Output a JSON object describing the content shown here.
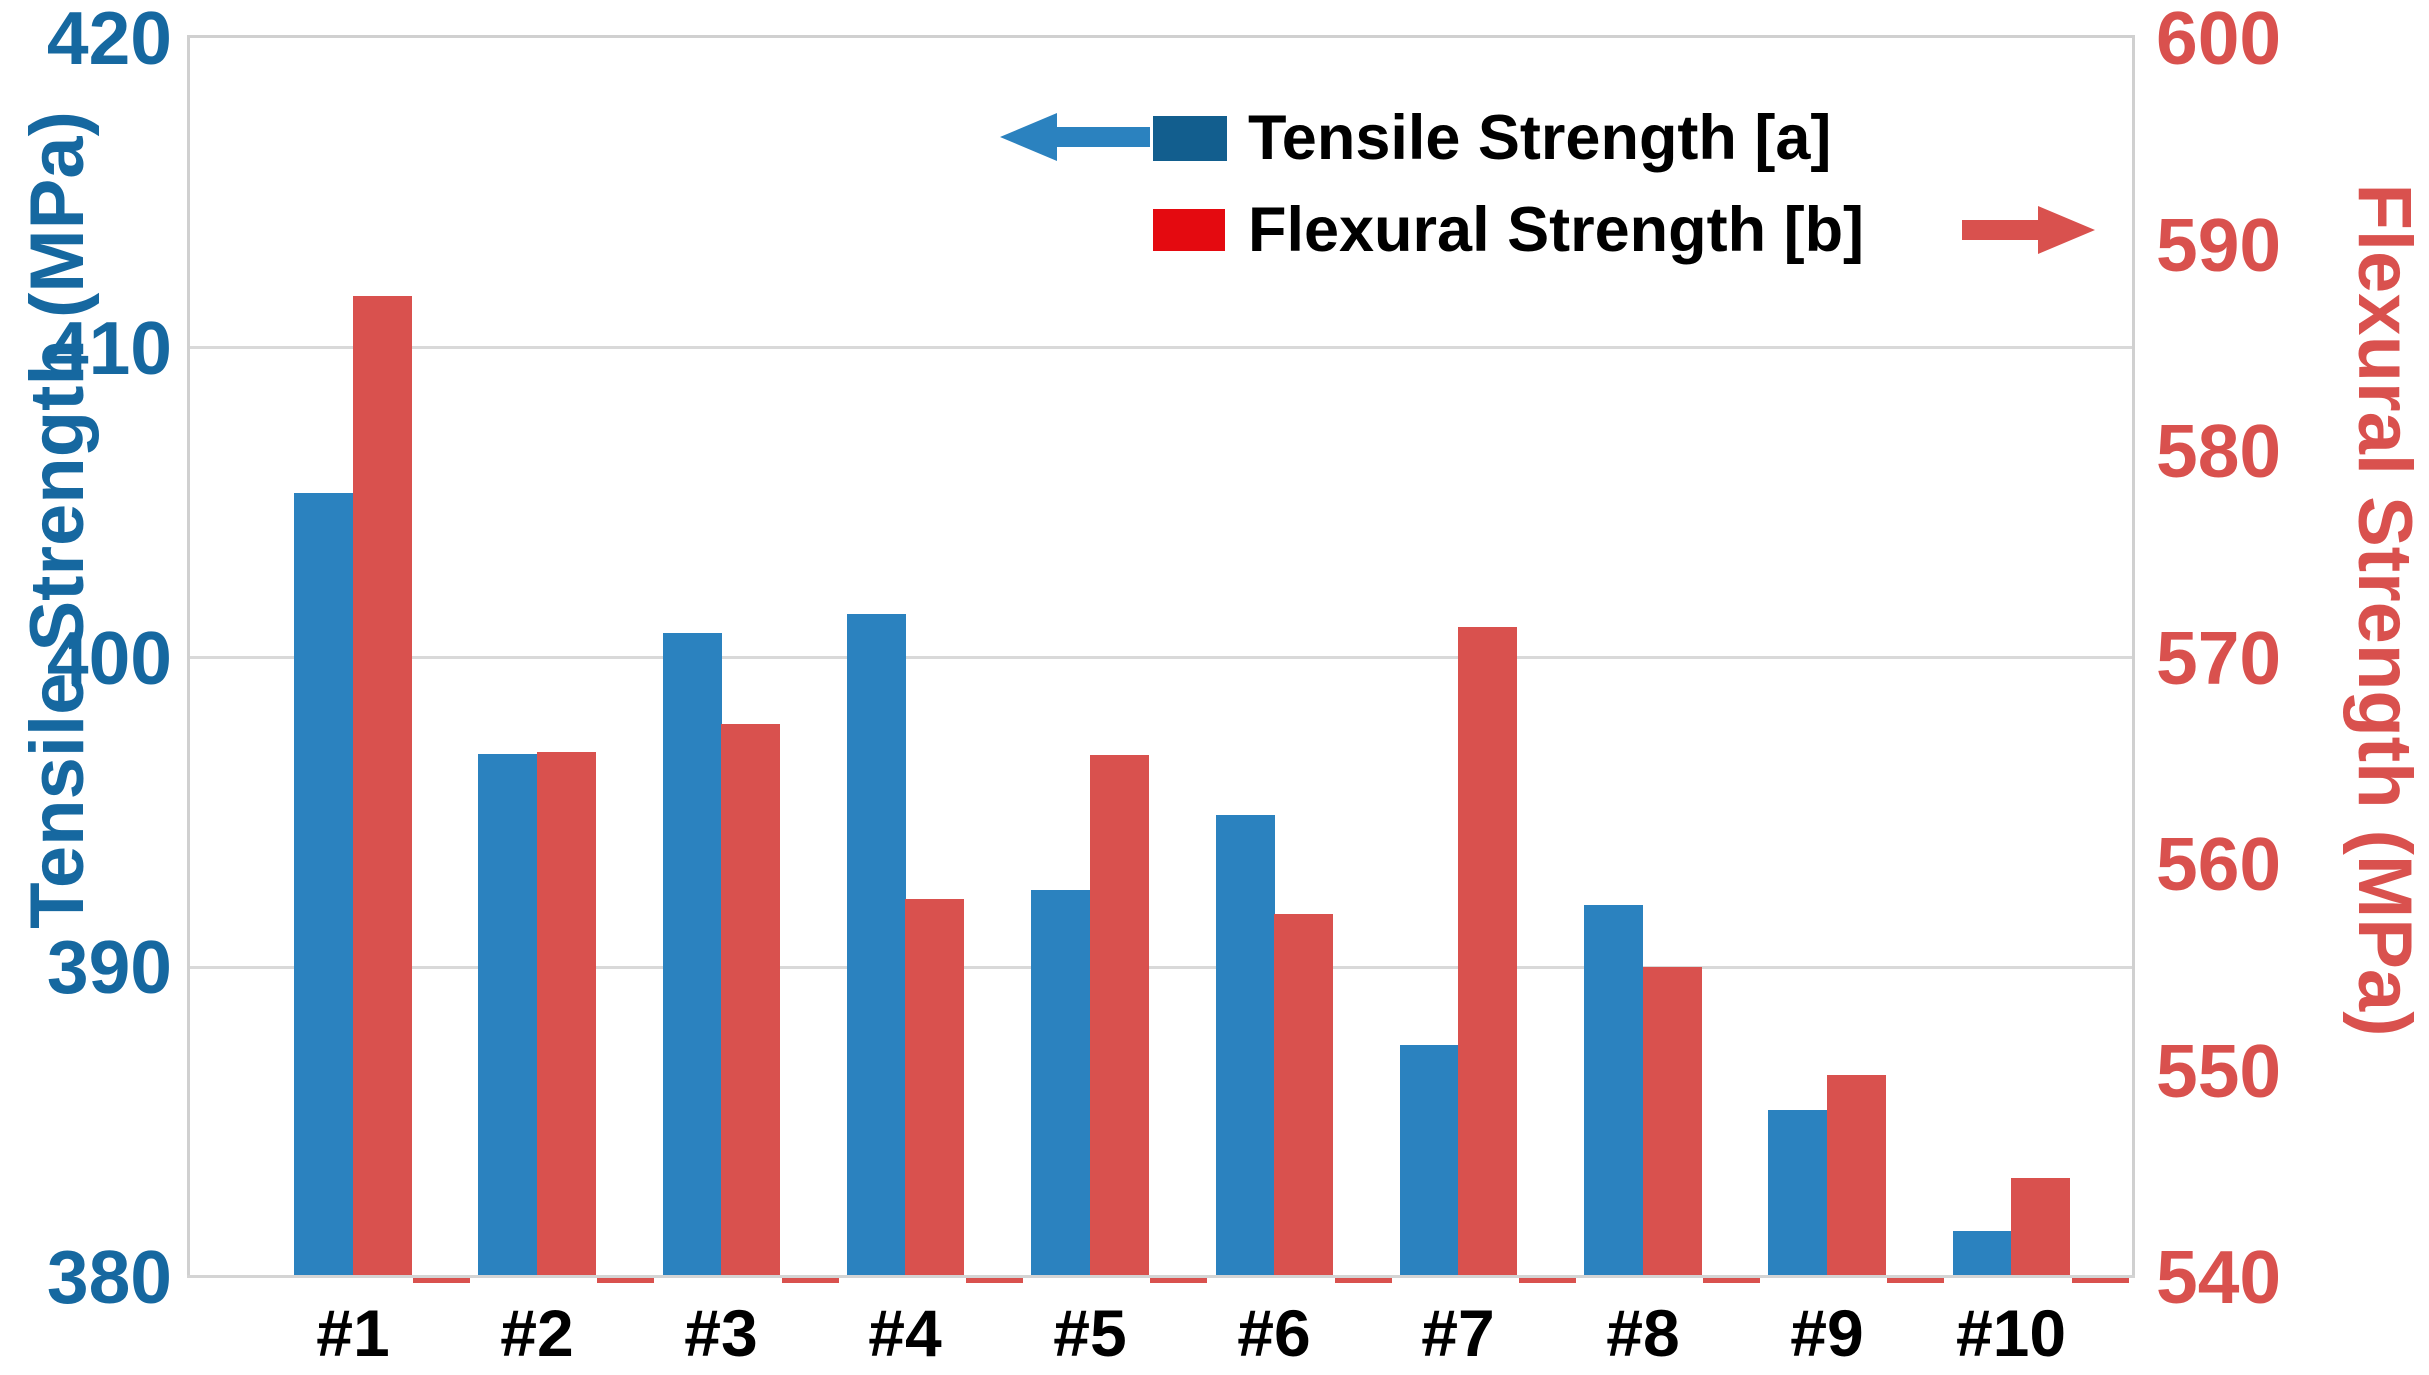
{
  "chart_data": {
    "type": "bar",
    "categories": [
      "#1",
      "#2",
      "#3",
      "#4",
      "#5",
      "#6",
      "#7",
      "#8",
      "#9",
      "#10"
    ],
    "series": [
      {
        "name": "Tensile Strength [a]",
        "axis": "left",
        "unit": "MPa",
        "bar_color": "#2b82bf",
        "legend_swatch_color": "#125e8e",
        "values": [
          405.3,
          396.9,
          400.8,
          401.4,
          392.5,
          394.9,
          387.5,
          392.0,
          385.4,
          381.5
        ]
      },
      {
        "name": "Flexural Strength [b]",
        "axis": "right",
        "unit": "MPa",
        "bar_color": "#d9514e",
        "legend_swatch_color": "#e40a10",
        "values": [
          587.5,
          565.4,
          566.8,
          558.3,
          565.3,
          557.6,
          571.5,
          555.0,
          549.8,
          544.8
        ]
      }
    ],
    "left_axis": {
      "label": "Tensile Strength (MPa)",
      "min": 380,
      "max": 420,
      "tick_step": 10,
      "ticks": [
        420,
        410,
        400,
        390,
        380
      ],
      "color": "#1668a0"
    },
    "right_axis": {
      "label": "Flexural Strength (MPa)",
      "min": 540,
      "max": 600,
      "tick_step": 10,
      "ticks": [
        600,
        590,
        580,
        570,
        560,
        550,
        540
      ],
      "color": "#d9514e"
    },
    "gridlines": {
      "at_left_values": [
        410,
        400,
        390
      ],
      "color": "#d9d9d9"
    },
    "legend": {
      "position": "top-center",
      "entries": [
        {
          "label": "Tensile Strength [a]",
          "arrow": "left",
          "arrow_color": "#2b82bf",
          "swatch_color": "#125e8e"
        },
        {
          "label": "Flexural Strength [b]",
          "arrow": "right",
          "arrow_color": "#d9514e",
          "swatch_color": "#e40a10"
        }
      ]
    },
    "baseline_markers": {
      "color": "#d9514e"
    }
  },
  "colors": {
    "background": "#ffffff",
    "plot_border": "#d0d0d0",
    "axis_line": "#d4d4d4",
    "category_label": "#000000",
    "legend_text": "#000000"
  }
}
